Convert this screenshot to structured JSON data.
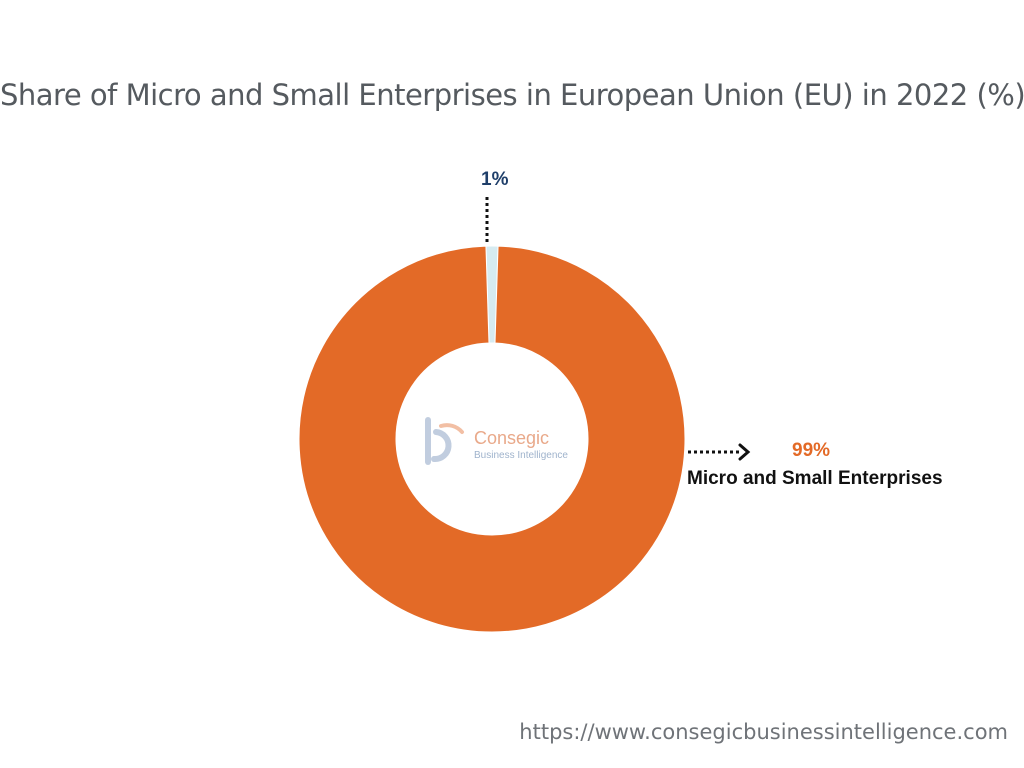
{
  "title": "Share of Micro and Small Enterprises in European Union (EU) in 2022 (%)",
  "chart_data": {
    "type": "pie",
    "subtype": "donut",
    "title": "Share of Micro and Small Enterprises in European Union (EU) in 2022 (%)",
    "slices": [
      {
        "label": "Micro and Small Enterprises",
        "value": 99,
        "display": "99%",
        "color": "#e36a27"
      },
      {
        "label": "",
        "value": 1,
        "display": "1%",
        "color": "#d6ebf1"
      }
    ]
  },
  "watermark": {
    "name": "Consegic",
    "sub": "Business Intelligence",
    "icon": "consegic-logo-icon"
  },
  "footer": {
    "url": "https://www.consegicbusinessintelligence.com"
  },
  "colors": {
    "accent": "#e36a27",
    "small_label": "#1f3f6a"
  }
}
